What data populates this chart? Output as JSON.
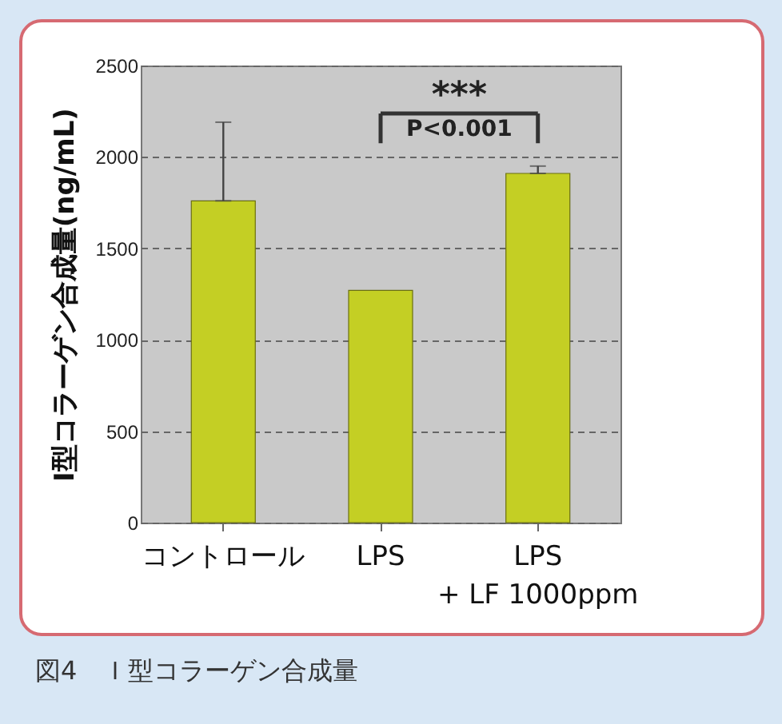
{
  "chart_data": {
    "type": "bar",
    "title": "図4　Ｉ型コラーゲン合成量",
    "ylabel": "I型コラーゲン合成量(ng/mL)",
    "categories": [
      "コントロール",
      "LPS",
      "LPS\n+ LF 1000ppm"
    ],
    "values": [
      1760,
      1270,
      1910
    ],
    "errors": [
      [
        1760,
        2190
      ],
      null,
      [
        1910,
        1950
      ]
    ],
    "color": "#c4cf24",
    "ylim": [
      0,
      2500
    ],
    "yticks": [
      0,
      500,
      1000,
      1500,
      2000,
      2500
    ],
    "grid": "y",
    "annotations": [
      "***",
      "P<0.001"
    ]
  }
}
